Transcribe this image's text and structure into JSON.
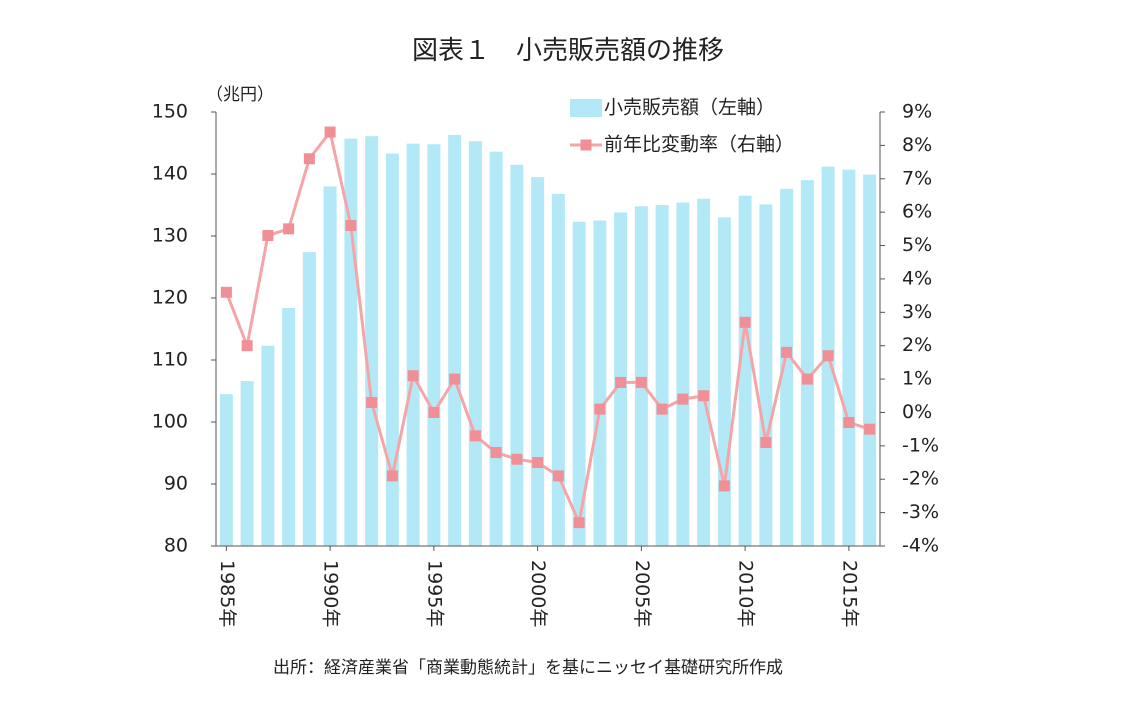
{
  "chart_data": {
    "type": "bar_line",
    "title": "図表１　小売販売額の推移",
    "y_label": "（兆円）",
    "source": "出所：経済産業省「商業動態統計」を基にニッセイ基礎研究所作成",
    "categories": [
      "1985年",
      null,
      null,
      null,
      null,
      "1990年",
      null,
      null,
      null,
      null,
      "1995年",
      null,
      null,
      null,
      null,
      "2000年",
      null,
      null,
      null,
      null,
      "2005年",
      null,
      null,
      null,
      null,
      "2010年",
      null,
      null,
      null,
      null,
      "2015年",
      null
    ],
    "series": [
      {
        "name": "小売販売額（左軸）",
        "type": "bar",
        "axis": "y",
        "color": "#b3e9f7",
        "values": [
          104.5,
          106.6,
          112.3,
          118.4,
          127.4,
          138.0,
          145.7,
          146.1,
          143.3,
          144.9,
          144.8,
          146.3,
          145.3,
          143.6,
          141.5,
          139.5,
          136.8,
          132.3,
          132.5,
          133.8,
          134.8,
          135.0,
          135.4,
          136.0,
          133.0,
          136.5,
          135.1,
          137.6,
          139.0,
          141.2,
          140.7,
          139.9
        ]
      },
      {
        "name": "前年比変動率（右軸）",
        "type": "line",
        "axis": "y2",
        "color": "#f4a5a8",
        "marker_color": "#f08f95",
        "values": [
          3.6,
          2.0,
          5.3,
          5.5,
          7.6,
          8.4,
          5.6,
          0.3,
          -1.9,
          1.1,
          0.0,
          1.0,
          -0.7,
          -1.2,
          -1.4,
          -1.5,
          -1.9,
          -3.3,
          0.1,
          0.9,
          0.9,
          0.1,
          0.4,
          0.5,
          -2.2,
          2.7,
          -0.9,
          1.8,
          1.0,
          1.7,
          -0.3,
          -0.5
        ]
      }
    ],
    "ylim": [
      80,
      150
    ],
    "yticks": [
      80,
      90,
      100,
      110,
      120,
      130,
      140,
      150
    ],
    "y2lim": [
      -4,
      9
    ],
    "y2ticks": [
      {
        "value": -4,
        "label": "-4%"
      },
      {
        "value": -3,
        "label": "-3%"
      },
      {
        "value": -2,
        "label": "-2%"
      },
      {
        "value": -1,
        "label": "-1%"
      },
      {
        "value": 0,
        "label": "0%"
      },
      {
        "value": 1,
        "label": "1%"
      },
      {
        "value": 2,
        "label": "2%"
      },
      {
        "value": 3,
        "label": "3%"
      },
      {
        "value": 4,
        "label": "4%"
      },
      {
        "value": 5,
        "label": "5%"
      },
      {
        "value": 6,
        "label": "6%"
      },
      {
        "value": 7,
        "label": "7%"
      },
      {
        "value": 8,
        "label": "8%"
      },
      {
        "value": 9,
        "label": "9%"
      }
    ],
    "legend": "top-right",
    "grid": false
  }
}
